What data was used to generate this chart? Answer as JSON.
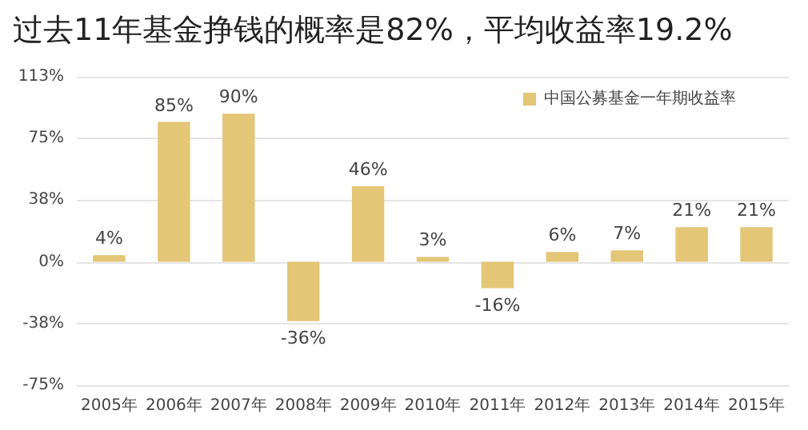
{
  "chart_data": {
    "type": "bar",
    "title": "过去11年基金挣钱的概率是82%，平均收益率19.2%",
    "categories": [
      "2005年",
      "2006年",
      "2007年",
      "2008年",
      "2009年",
      "2010年",
      "2011年",
      "2012年",
      "2013年",
      "2014年",
      "2015年"
    ],
    "series": [
      {
        "name": "中国公募基金一年期收益率",
        "color": "#e3c676",
        "values": [
          4,
          85,
          90,
          -36,
          46,
          3,
          -16,
          6,
          7,
          21,
          21
        ],
        "value_labels": [
          "4%",
          "85%",
          "90%",
          "-36%",
          "46%",
          "3%",
          "-16%",
          "6%",
          "7%",
          "21%",
          "21%"
        ]
      }
    ],
    "ylim": [
      -75,
      112.5
    ],
    "yticks": [
      {
        "value": -75,
        "label": "-75%"
      },
      {
        "value": -37.5,
        "label": "-38%"
      },
      {
        "value": 0,
        "label": "0%"
      },
      {
        "value": 37.5,
        "label": "38%"
      },
      {
        "value": 75,
        "label": "75%"
      },
      {
        "value": 112.5,
        "label": "113%"
      }
    ],
    "grid": "y",
    "legend": "top right"
  }
}
